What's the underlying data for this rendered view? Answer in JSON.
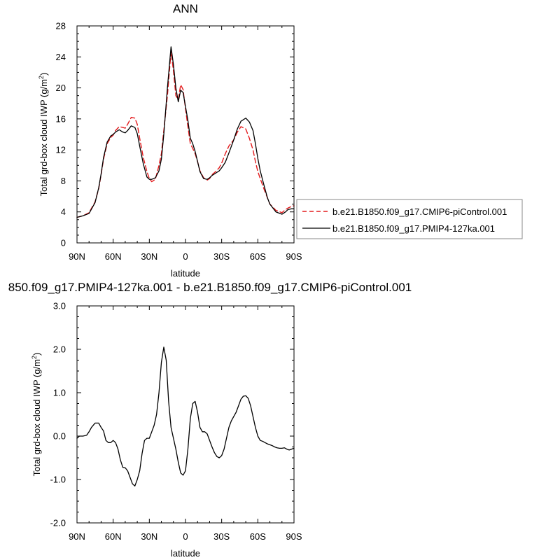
{
  "chart_data": [
    {
      "type": "line",
      "title": "ANN",
      "xlabel": "latitude",
      "ylabel": "Total grd-box cloud IWP (g/m²)",
      "ylabel_main": "Total grd-box cloud IWP (g/m",
      "ylabel_sup": "2",
      "ylabel_close": ")",
      "xlim": [
        90,
        -90
      ],
      "ylim": [
        0,
        28
      ],
      "xticks": [
        {
          "value": 90,
          "label": "90N"
        },
        {
          "value": 60,
          "label": "60N"
        },
        {
          "value": 30,
          "label": "30N"
        },
        {
          "value": 0,
          "label": "0"
        },
        {
          "value": -30,
          "label": "30S"
        },
        {
          "value": -60,
          "label": "60S"
        },
        {
          "value": -90,
          "label": "90S"
        }
      ],
      "yticks": [
        {
          "value": 0,
          "label": "0"
        },
        {
          "value": 4,
          "label": "4"
        },
        {
          "value": 8,
          "label": "8"
        },
        {
          "value": 12,
          "label": "12"
        },
        {
          "value": 16,
          "label": "16"
        },
        {
          "value": 20,
          "label": "20"
        },
        {
          "value": 24,
          "label": "24"
        },
        {
          "value": 28,
          "label": "28"
        }
      ],
      "legend_position": "right",
      "series": [
        {
          "name": "b.e21.B1850.f09_g17.CMIP6-piControl.001",
          "color": "#e31a1c",
          "dash": true,
          "x": [
            90,
            85,
            80,
            75,
            72,
            70,
            68,
            65,
            62,
            60,
            58,
            55,
            52,
            50,
            48,
            45,
            42,
            40,
            38,
            35,
            32,
            30,
            28,
            25,
            22,
            20,
            18,
            15,
            12,
            10,
            8,
            6,
            4,
            2,
            0,
            -2,
            -4,
            -6,
            -8,
            -10,
            -12,
            -15,
            -18,
            -20,
            -22,
            -25,
            -28,
            -30,
            -33,
            -36,
            -40,
            -43,
            -46,
            -50,
            -53,
            -56,
            -58,
            -60,
            -62,
            -65,
            -68,
            -70,
            -75,
            -80,
            -83,
            -85,
            -88,
            -90
          ],
          "y": [
            3.3,
            3.5,
            3.9,
            5.3,
            7.0,
            8.8,
            10.8,
            12.8,
            13.6,
            13.9,
            14.5,
            15.0,
            14.9,
            14.8,
            15.3,
            16.2,
            16.1,
            15.3,
            13.5,
            11.0,
            9.2,
            8.3,
            7.9,
            8.2,
            10.0,
            11.5,
            14.5,
            19.0,
            24.7,
            22.2,
            19.0,
            18.5,
            20.4,
            19.8,
            17.3,
            15.0,
            12.8,
            12.2,
            11.5,
            10.5,
            9.3,
            8.4,
            8.1,
            8.3,
            8.8,
            9.2,
            9.7,
            10.3,
            11.5,
            12.5,
            13.3,
            14.3,
            15.0,
            14.7,
            13.5,
            12.0,
            10.5,
            9.2,
            8.3,
            7.0,
            5.8,
            5.0,
            4.2,
            3.9,
            4.3,
            4.5,
            4.7,
            4.8
          ]
        },
        {
          "name": "b.e21.B1850.f09_g17.PMIP4-127ka.001",
          "color": "#000000",
          "dash": false,
          "x": [
            90,
            85,
            80,
            75,
            72,
            70,
            68,
            65,
            62,
            60,
            58,
            55,
            52,
            50,
            48,
            45,
            42,
            40,
            38,
            35,
            32,
            30,
            28,
            25,
            22,
            20,
            18,
            15,
            12,
            10,
            8,
            6,
            4,
            2,
            0,
            -2,
            -4,
            -6,
            -8,
            -10,
            -12,
            -15,
            -18,
            -20,
            -22,
            -25,
            -28,
            -30,
            -33,
            -36,
            -40,
            -43,
            -46,
            -50,
            -53,
            -56,
            -58,
            -60,
            -62,
            -65,
            -68,
            -70,
            -75,
            -80,
            -83,
            -85,
            -88,
            -90
          ],
          "y": [
            3.3,
            3.5,
            3.8,
            5.2,
            7.1,
            8.9,
            11.0,
            13.0,
            13.8,
            14.0,
            14.3,
            14.6,
            14.3,
            14.2,
            14.5,
            15.1,
            14.9,
            14.1,
            12.5,
            10.2,
            8.5,
            8.2,
            8.2,
            8.4,
            9.3,
            10.8,
            14.0,
            20.0,
            25.3,
            23.0,
            20.0,
            18.2,
            19.7,
            19.4,
            17.6,
            15.8,
            13.5,
            12.8,
            11.8,
            10.5,
            9.2,
            8.3,
            8.2,
            8.4,
            8.7,
            9.0,
            9.3,
            9.7,
            10.4,
            11.6,
            13.3,
            14.7,
            15.7,
            16.1,
            15.6,
            14.5,
            12.8,
            10.9,
            9.3,
            7.5,
            5.8,
            5.0,
            4.0,
            3.7,
            4.0,
            4.3,
            4.4,
            4.4
          ]
        }
      ]
    },
    {
      "type": "line",
      "title": "850.f09_g17.PMIP4-127ka.001 - b.e21.B1850.f09_g17.CMIP6-piControl.001",
      "xlabel": "latitude",
      "ylabel": "Total grd-box cloud IWP (g/m²)",
      "ylabel_main": "Total grd-box cloud IWP (g/m",
      "ylabel_sup": "2",
      "ylabel_close": ")",
      "xlim": [
        90,
        -90
      ],
      "ylim": [
        -2.0,
        3.0
      ],
      "xticks": [
        {
          "value": 90,
          "label": "90N"
        },
        {
          "value": 60,
          "label": "60N"
        },
        {
          "value": 30,
          "label": "30N"
        },
        {
          "value": 0,
          "label": "0"
        },
        {
          "value": -30,
          "label": "30S"
        },
        {
          "value": -60,
          "label": "60S"
        },
        {
          "value": -90,
          "label": "90S"
        }
      ],
      "yticks": [
        {
          "value": -2.0,
          "label": "-2.0"
        },
        {
          "value": -1.0,
          "label": "-1.0"
        },
        {
          "value": 0.0,
          "label": "0.0"
        },
        {
          "value": 1.0,
          "label": "1.0"
        },
        {
          "value": 2.0,
          "label": "2.0"
        },
        {
          "value": 3.0,
          "label": "3.0"
        }
      ],
      "series": [
        {
          "color": "#000000",
          "dash": false,
          "x": [
            90,
            88,
            85,
            82,
            80,
            78,
            75,
            72,
            70,
            68,
            66,
            64,
            62,
            60,
            58,
            56,
            54,
            52,
            50,
            48,
            46,
            44,
            42,
            40,
            38,
            36,
            34,
            32,
            30,
            28,
            26,
            24,
            22,
            20,
            18,
            16,
            14,
            12,
            10,
            8,
            6,
            4,
            2,
            0,
            -2,
            -4,
            -6,
            -8,
            -10,
            -12,
            -14,
            -16,
            -18,
            -20,
            -22,
            -24,
            -26,
            -28,
            -30,
            -32,
            -34,
            -36,
            -38,
            -40,
            -42,
            -44,
            -46,
            -48,
            -50,
            -52,
            -54,
            -56,
            -58,
            -60,
            -62,
            -64,
            -66,
            -68,
            -70,
            -72,
            -74,
            -76,
            -78,
            -80,
            -82,
            -84,
            -86,
            -88,
            -90
          ],
          "y": [
            -0.05,
            0.0,
            0.0,
            0.02,
            0.1,
            0.2,
            0.3,
            0.3,
            0.2,
            0.12,
            -0.1,
            -0.15,
            -0.15,
            -0.1,
            -0.15,
            -0.3,
            -0.55,
            -0.72,
            -0.73,
            -0.8,
            -0.95,
            -1.1,
            -1.15,
            -1.0,
            -0.8,
            -0.4,
            -0.1,
            -0.05,
            -0.05,
            0.1,
            0.25,
            0.5,
            1.0,
            1.7,
            2.05,
            1.75,
            0.8,
            0.2,
            -0.05,
            -0.3,
            -0.6,
            -0.85,
            -0.9,
            -0.8,
            -0.3,
            0.4,
            0.75,
            0.8,
            0.55,
            0.2,
            0.1,
            0.1,
            0.05,
            -0.1,
            -0.25,
            -0.38,
            -0.47,
            -0.5,
            -0.45,
            -0.3,
            -0.05,
            0.2,
            0.35,
            0.45,
            0.55,
            0.7,
            0.85,
            0.92,
            0.93,
            0.87,
            0.7,
            0.45,
            0.2,
            0.0,
            -0.1,
            -0.12,
            -0.15,
            -0.18,
            -0.2,
            -0.22,
            -0.25,
            -0.27,
            -0.28,
            -0.28,
            -0.27,
            -0.3,
            -0.32,
            -0.3,
            -0.28
          ]
        }
      ]
    }
  ]
}
